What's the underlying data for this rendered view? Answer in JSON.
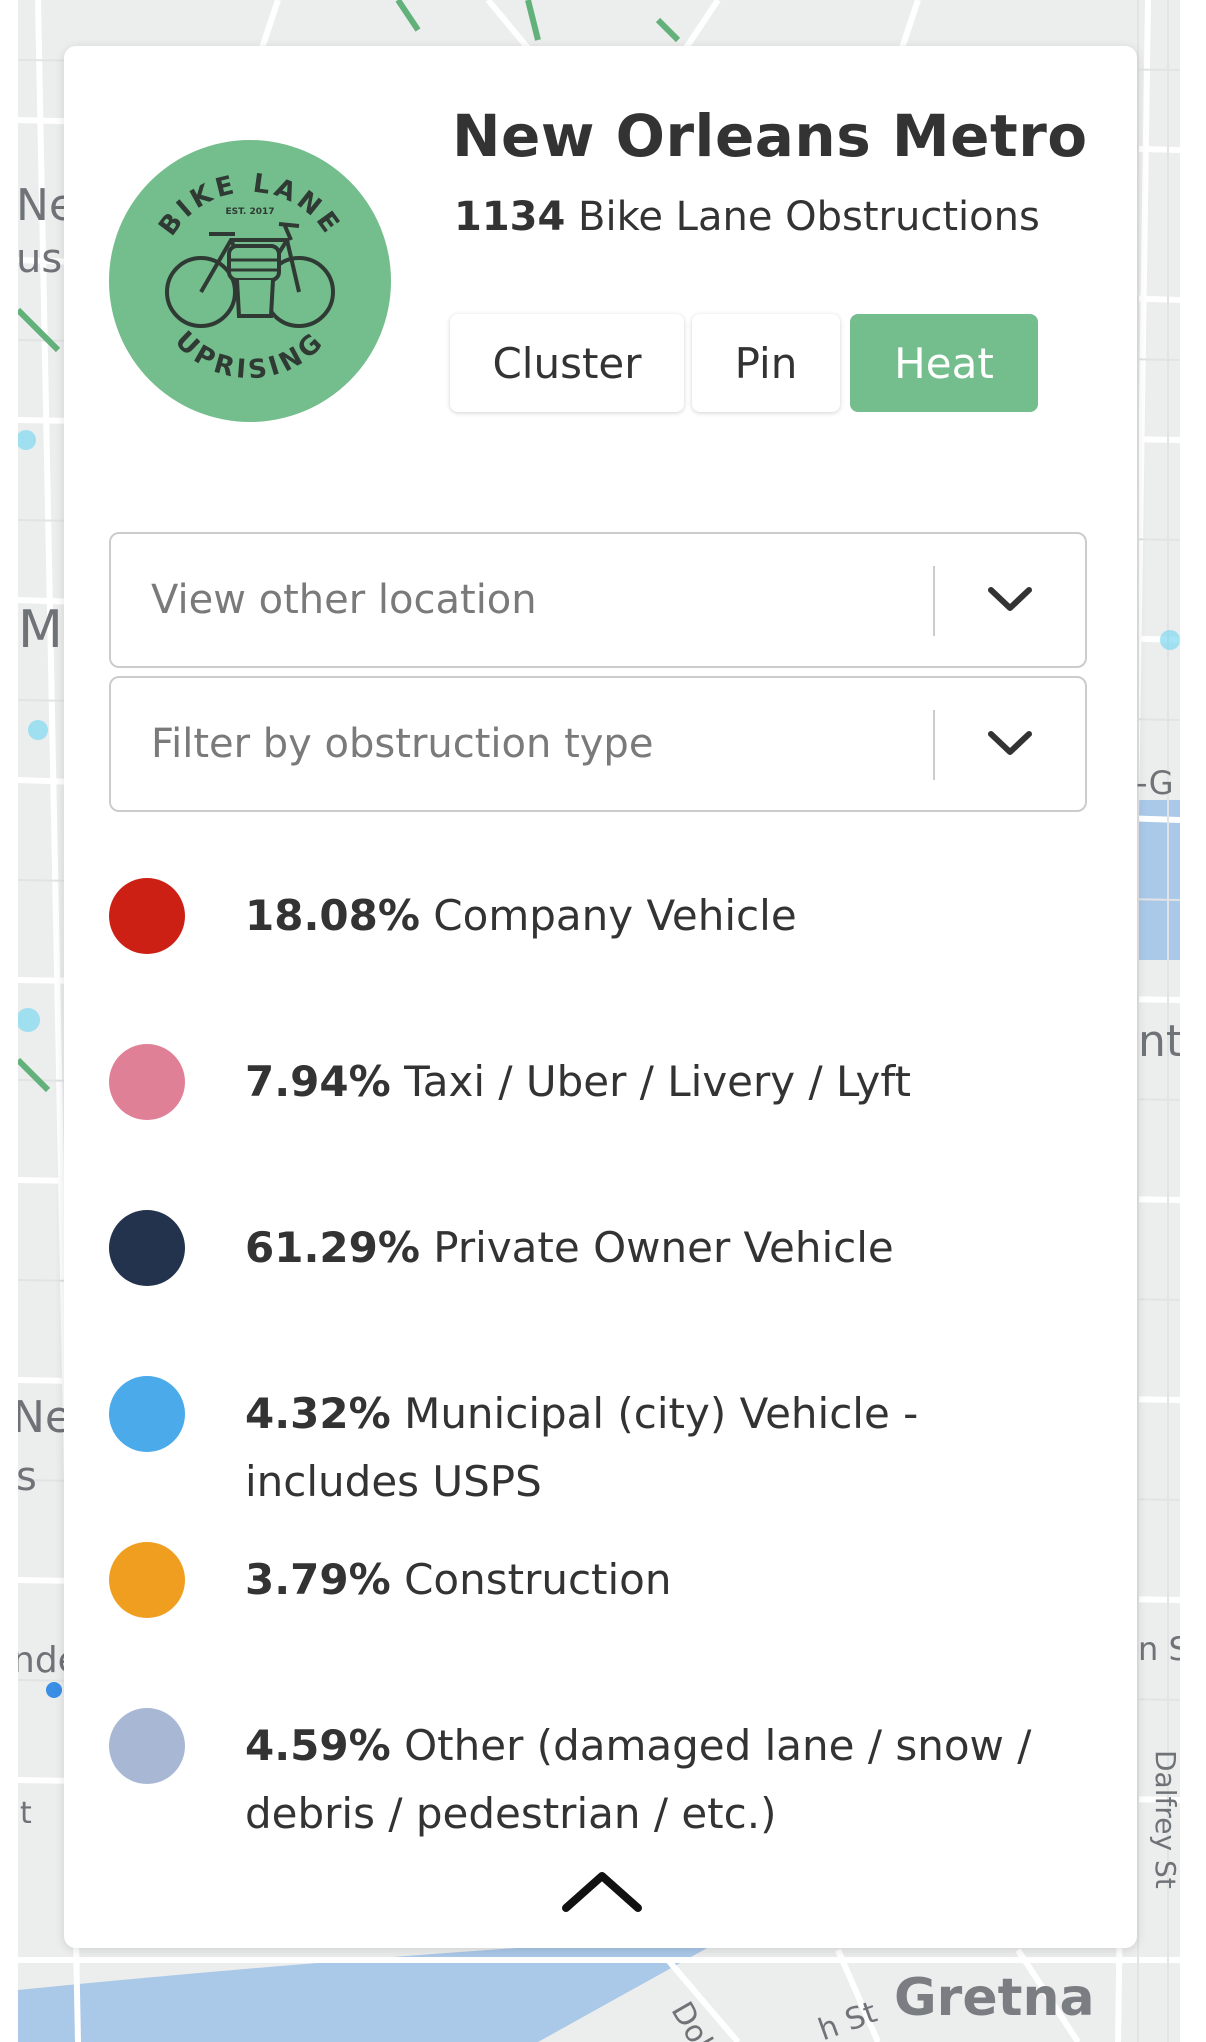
{
  "map": {
    "labels": [
      "Nev",
      "us",
      "M",
      "-G",
      "nt",
      "Nev",
      "s",
      "nde",
      "n S",
      "Dalfrey St",
      "Gretna",
      "Dol",
      "h St",
      "t"
    ]
  },
  "panel": {
    "logo": {
      "icon": "bike-lane-uprising-logo",
      "text_top": "BIKE LANE",
      "text_est": "EST. 2017",
      "text_bottom": "UPRISING",
      "color": "#74bd8c"
    },
    "title": "New Orleans Metro",
    "count": "1134",
    "count_suffix": "Bike Lane Obstructions",
    "modes": [
      {
        "label": "Cluster",
        "active": false
      },
      {
        "label": "Pin",
        "active": false
      },
      {
        "label": "Heat",
        "active": true
      }
    ],
    "location_select": {
      "placeholder": "View other location",
      "icon": "chevron-down-icon"
    },
    "type_select": {
      "placeholder": "Filter by obstruction type",
      "icon": "chevron-down-icon"
    },
    "legend": [
      {
        "percent": "18.08%",
        "label": "Company Vehicle",
        "color": "#cc2015"
      },
      {
        "percent": "7.94%",
        "label": "Taxi / Uber / Livery / Lyft",
        "color": "#e08096"
      },
      {
        "percent": "61.29%",
        "label": "Private Owner Vehicle",
        "color": "#24334d"
      },
      {
        "percent": "4.32%",
        "label": "Municipal (city) Vehicle - includes USPS",
        "color": "#4aaaea"
      },
      {
        "percent": "3.79%",
        "label": "Construction",
        "color": "#f09e1f"
      },
      {
        "percent": "4.59%",
        "label": "Other (damaged lane / snow / debris / pedestrian / etc.)",
        "color": "#a8b8d4"
      }
    ],
    "collapse_icon": "chevron-up-icon"
  }
}
